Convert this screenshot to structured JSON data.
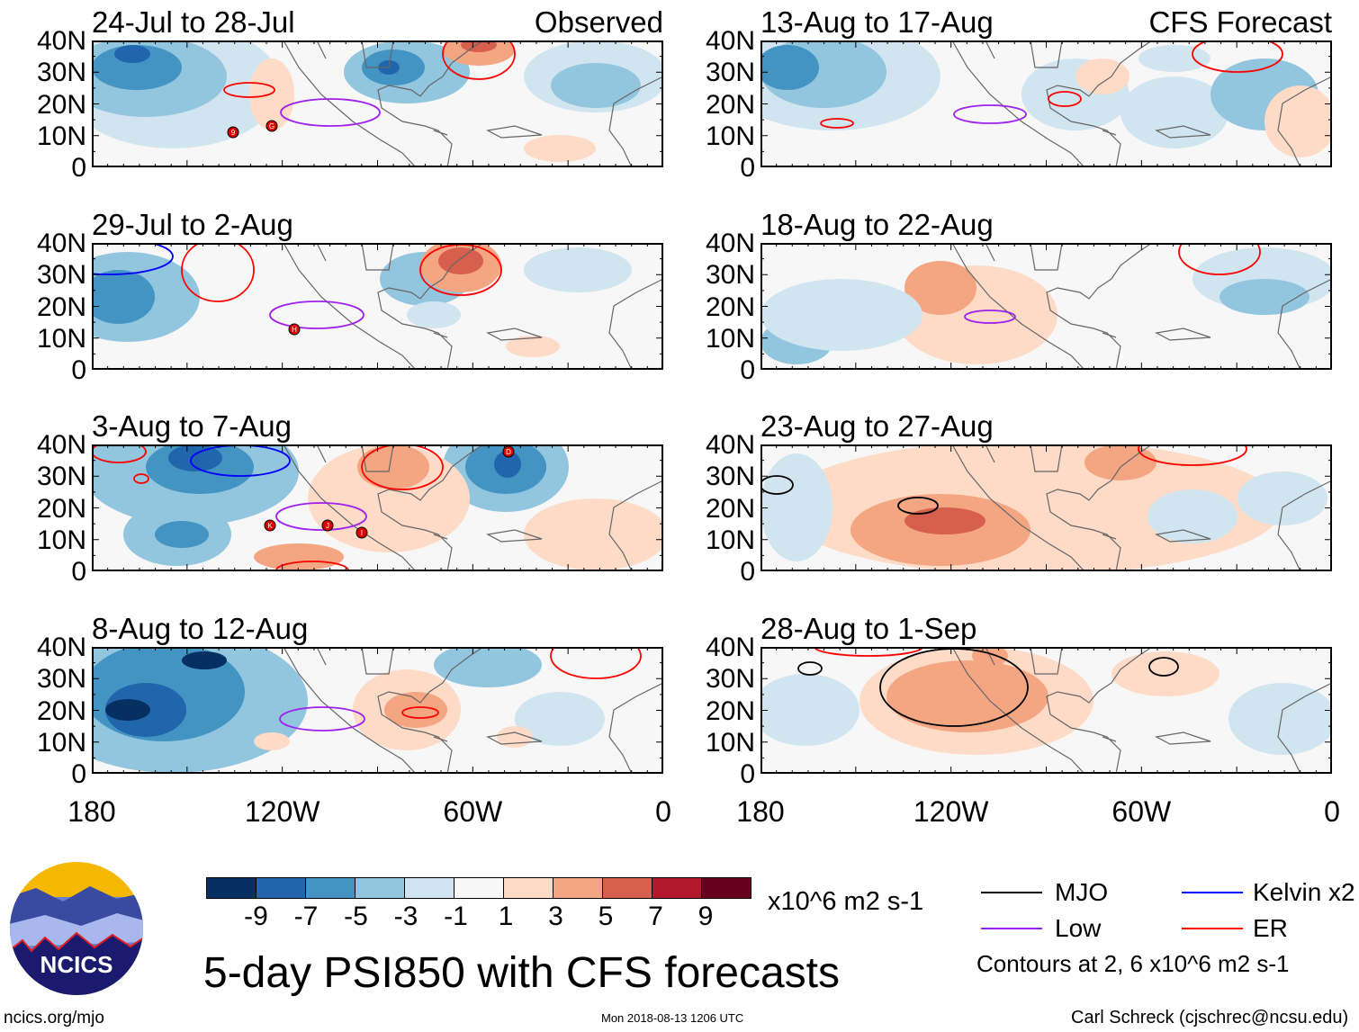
{
  "panels": [
    {
      "title": "24-Jul to 28-Jul",
      "tag": "Observed",
      "storms": [
        "9",
        "G"
      ]
    },
    {
      "title": "13-Aug to 17-Aug",
      "tag": "CFS Forecast",
      "storms": []
    },
    {
      "title": "29-Jul to 2-Aug",
      "tag": "",
      "storms": [
        "H"
      ]
    },
    {
      "title": "18-Aug to 22-Aug",
      "tag": "",
      "storms": []
    },
    {
      "title": "3-Aug to 7-Aug",
      "tag": "",
      "storms": [
        "D",
        "K",
        "J",
        "I"
      ]
    },
    {
      "title": "23-Aug to 27-Aug",
      "tag": "",
      "storms": []
    },
    {
      "title": "8-Aug to 12-Aug",
      "tag": "",
      "storms": []
    },
    {
      "title": "28-Aug to 1-Sep",
      "tag": "",
      "storms": []
    }
  ],
  "y_labels": [
    "40N",
    "30N",
    "20N",
    "10N",
    "0"
  ],
  "x_labels": [
    "180",
    "120W",
    "60W",
    "0"
  ],
  "colorbar": {
    "colors": [
      "#053061",
      "#2166ac",
      "#4393c3",
      "#92c5de",
      "#d1e5f0",
      "#f7f7f7",
      "#fddbc7",
      "#f4a582",
      "#d6604d",
      "#b2182b",
      "#67001f"
    ],
    "labels": [
      "-9",
      "-7",
      "-5",
      "-3",
      "-1",
      "1",
      "3",
      "5",
      "7",
      "9"
    ],
    "units": "x10^6 m2 s-1"
  },
  "legend": {
    "items": [
      {
        "label": "MJO",
        "color": "#000000"
      },
      {
        "label": "Kelvin x2",
        "color": "#0000ff"
      },
      {
        "label": "Low",
        "color": "#a020f0"
      },
      {
        "label": "ER",
        "color": "#ff0000"
      }
    ],
    "note": "Contours at 2, 6 x10^6 m2 s-1"
  },
  "title": "5-day PSI850 with CFS forecasts",
  "logo_text": "NCICS",
  "footer": {
    "left": "ncics.org/mjo",
    "center": "Mon 2018-08-13 1206 UTC",
    "right": "Carl Schreck (cjschrec@ncsu.edu)"
  }
}
